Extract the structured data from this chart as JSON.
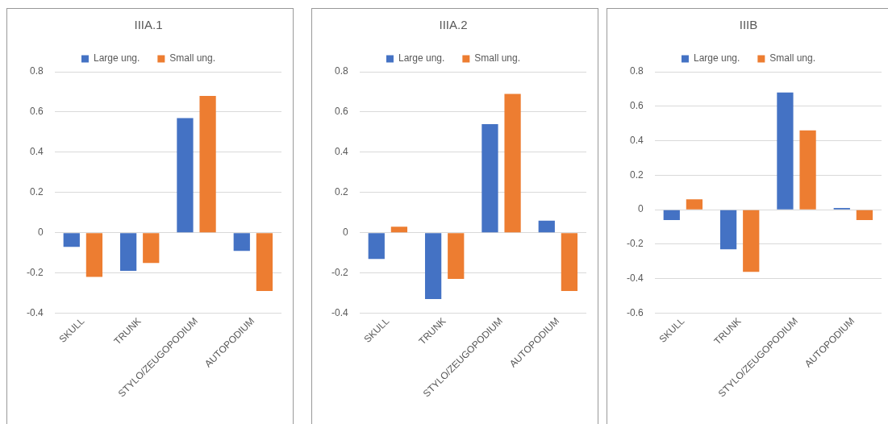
{
  "chart_data": [
    {
      "type": "bar",
      "title": "IIIA.1",
      "categories": [
        "SKULL",
        "TRUNK",
        "STYLO/ZEUGOPODIUM",
        "AUTOPODIUM"
      ],
      "series": [
        {
          "name": "Large ung.",
          "color": "#4472c4",
          "values": [
            -0.07,
            -0.19,
            0.57,
            -0.09
          ]
        },
        {
          "name": "Small ung.",
          "color": "#ed7d31",
          "values": [
            -0.22,
            -0.15,
            0.68,
            -0.29
          ]
        }
      ],
      "ylim": [
        -0.4,
        0.8
      ],
      "yticks": [
        -0.4,
        -0.2,
        0,
        0.2,
        0.4,
        0.6,
        0.8
      ],
      "grid": "y",
      "legend": "top"
    },
    {
      "type": "bar",
      "title": "IIIA.2",
      "categories": [
        "SKULL",
        "TRUNK",
        "STYLO/ZEUGOPODIUM",
        "AUTOPODIUM"
      ],
      "series": [
        {
          "name": "Large ung.",
          "color": "#4472c4",
          "values": [
            -0.13,
            -0.33,
            0.54,
            0.06
          ]
        },
        {
          "name": "Small ung.",
          "color": "#ed7d31",
          "values": [
            0.03,
            -0.23,
            0.69,
            -0.29
          ]
        }
      ],
      "ylim": [
        -0.4,
        0.8
      ],
      "yticks": [
        -0.4,
        -0.2,
        0,
        0.2,
        0.4,
        0.6,
        0.8
      ],
      "grid": "y",
      "legend": "top"
    },
    {
      "type": "bar",
      "title": "IIIB",
      "categories": [
        "SKULL",
        "TRUNK",
        "STYLO/ZEUGOPODIUM",
        "AUTOPODIUM"
      ],
      "series": [
        {
          "name": "Large ung.",
          "color": "#4472c4",
          "values": [
            -0.06,
            -0.23,
            0.68,
            0.01
          ]
        },
        {
          "name": "Small ung.",
          "color": "#ed7d31",
          "values": [
            0.06,
            -0.36,
            0.46,
            -0.06
          ]
        }
      ],
      "ylim": [
        -0.6,
        0.8
      ],
      "yticks": [
        -0.6,
        -0.4,
        -0.2,
        0,
        0.2,
        0.4,
        0.6,
        0.8
      ],
      "grid": "y",
      "legend": "top"
    }
  ]
}
